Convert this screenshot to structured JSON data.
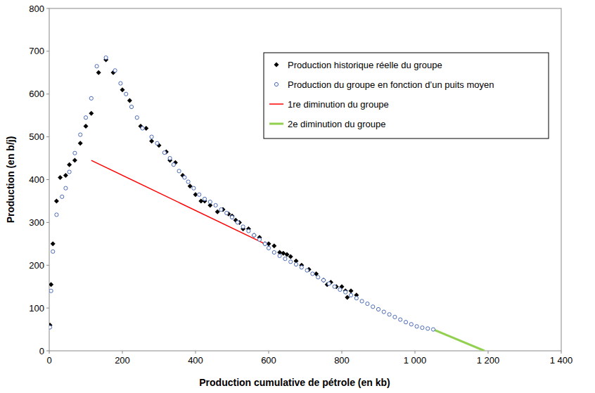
{
  "chart_data": {
    "type": "scatter",
    "x_label": "Production cumulative de pétrole (en kb)",
    "y_label": "Production (en b/j)",
    "xlim": [
      0,
      1400
    ],
    "ylim": [
      0,
      800
    ],
    "xticks": [
      0,
      200,
      400,
      600,
      800,
      {
        "value": 1000,
        "label": "1 000"
      },
      {
        "value": 1200,
        "label": "1 200"
      },
      {
        "value": 1400,
        "label": "1 400"
      }
    ],
    "yticks": [
      0,
      100,
      200,
      300,
      400,
      500,
      600,
      700,
      800
    ],
    "grid": false,
    "legend": "top-right",
    "series": [
      {
        "name": "Production historique réelle du groupe",
        "type": "scatter",
        "marker": "diamond",
        "color": "#000000",
        "x": [
          2,
          5,
          10,
          20,
          30,
          45,
          55,
          70,
          85,
          100,
          115,
          135,
          155,
          175,
          200,
          220,
          250,
          265,
          280,
          300,
          320,
          330,
          345,
          365,
          385,
          400,
          415,
          425,
          440,
          460,
          475,
          490,
          500,
          510,
          520,
          530,
          545,
          560,
          575,
          590,
          600,
          615,
          630,
          640,
          650,
          660,
          675,
          690,
          710,
          730,
          750,
          760,
          770,
          785,
          800,
          810,
          815,
          825,
          840
        ],
        "values": [
          60,
          155,
          250,
          350,
          405,
          410,
          435,
          445,
          485,
          525,
          555,
          650,
          680,
          650,
          610,
          585,
          525,
          520,
          490,
          480,
          465,
          445,
          440,
          410,
          385,
          365,
          350,
          350,
          340,
          325,
          330,
          320,
          315,
          305,
          300,
          285,
          285,
          270,
          265,
          250,
          250,
          245,
          230,
          228,
          225,
          220,
          210,
          200,
          190,
          180,
          165,
          155,
          160,
          150,
          150,
          140,
          125,
          140,
          130
        ]
      },
      {
        "name": "Production du groupe en fonction d’un puits moyen",
        "type": "scatter",
        "marker": "circle-open",
        "color": "#4a6bb8",
        "x": [
          2,
          5,
          10,
          20,
          35,
          45,
          55,
          70,
          85,
          100,
          115,
          130,
          155,
          180,
          195,
          210,
          225,
          240,
          255,
          280,
          295,
          315,
          330,
          340,
          355,
          370,
          380,
          395,
          410,
          425,
          440,
          455,
          470,
          485,
          500,
          515,
          530,
          545,
          560,
          575,
          590,
          600,
          615,
          630,
          645,
          660,
          675,
          690,
          705,
          720,
          735,
          750,
          765,
          780,
          795,
          810,
          825,
          840,
          855,
          870,
          885,
          900,
          915,
          930,
          945,
          960,
          975,
          990,
          1005,
          1020,
          1035,
          1050
        ],
        "values": [
          55,
          140,
          232,
          318,
          360,
          380,
          418,
          462,
          505,
          545,
          590,
          665,
          685,
          655,
          625,
          600,
          570,
          545,
          520,
          500,
          485,
          463,
          450,
          435,
          420,
          405,
          395,
          380,
          365,
          355,
          348,
          340,
          330,
          322,
          312,
          300,
          290,
          280,
          270,
          260,
          250,
          240,
          230,
          222,
          215,
          208,
          202,
          195,
          188,
          180,
          172,
          165,
          157,
          150,
          143,
          137,
          130,
          123,
          116,
          110,
          103,
          97,
          91,
          85,
          79,
          73,
          67,
          62,
          57,
          54,
          52,
          50
        ]
      },
      {
        "name": "1re diminution du groupe",
        "type": "line",
        "line_style": "solid",
        "color": "#ff0000",
        "x": [
          115,
          590
        ],
        "values": [
          445,
          250
        ]
      },
      {
        "name": "2e diminution du groupe",
        "type": "line",
        "line_style": "solid",
        "color": "#92d050",
        "x": [
          1050,
          1190
        ],
        "values": [
          50,
          0
        ]
      }
    ]
  }
}
